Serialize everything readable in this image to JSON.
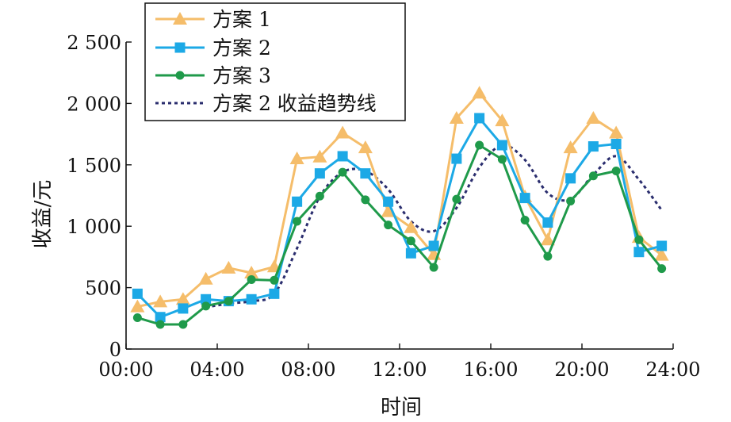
{
  "chart_data": {
    "type": "line",
    "xlabel": "时间",
    "ylabel": "收益/元",
    "xlim": [
      0,
      24
    ],
    "ylim": [
      0,
      2500
    ],
    "x_ticks": [
      0,
      4,
      8,
      12,
      16,
      20,
      24
    ],
    "x_tick_labels": [
      "00:00",
      "04:00",
      "08:00",
      "12:00",
      "16:00",
      "20:00",
      "24:00"
    ],
    "y_ticks": [
      0,
      500,
      1000,
      1500,
      2000,
      2500
    ],
    "y_tick_labels": [
      "0",
      "500",
      "1 000",
      "1 500",
      "2 000",
      "2 500"
    ],
    "legend_position": "top-left",
    "x": [
      "00:30",
      "01:30",
      "02:30",
      "03:30",
      "04:30",
      "05:30",
      "06:30",
      "07:30",
      "08:30",
      "09:30",
      "10:30",
      "11:30",
      "12:30",
      "13:30",
      "14:30",
      "15:30",
      "16:30",
      "17:30",
      "18:30",
      "19:30",
      "20:30",
      "21:30",
      "22:30",
      "23:30"
    ],
    "series": [
      {
        "name": "方案 1",
        "color": "#f5bd6a",
        "marker": "triangle",
        "values": [
          345,
          385,
          405,
          570,
          660,
          620,
          670,
          1550,
          1565,
          1760,
          1640,
          1120,
          990,
          770,
          1880,
          2085,
          1860,
          1240,
          890,
          1640,
          1880,
          1760,
          910,
          765
        ]
      },
      {
        "name": "方案 2",
        "color": "#1ca9e6",
        "marker": "square",
        "values": [
          450,
          260,
          330,
          405,
          390,
          405,
          450,
          1200,
          1430,
          1570,
          1430,
          1200,
          780,
          840,
          1550,
          1880,
          1660,
          1230,
          1030,
          1390,
          1650,
          1670,
          790,
          840
        ]
      },
      {
        "name": "方案 3",
        "color": "#1f9a4a",
        "marker": "circle",
        "values": [
          255,
          200,
          200,
          350,
          390,
          565,
          560,
          1040,
          1245,
          1440,
          1215,
          1010,
          880,
          665,
          1220,
          1660,
          1545,
          1050,
          755,
          1205,
          1410,
          1450,
          890,
          655
        ]
      },
      {
        "name": "方案 2 收益趋势线",
        "color": "#2a2d6e",
        "marker": "none",
        "dashed": true,
        "values": [
          null,
          null,
          null,
          340,
          370,
          390,
          450,
          820,
          1240,
          1440,
          1450,
          1300,
          1040,
          960,
          1150,
          1480,
          1660,
          1540,
          1270,
          1220,
          1420,
          1570,
          1380,
          1130
        ]
      }
    ]
  }
}
